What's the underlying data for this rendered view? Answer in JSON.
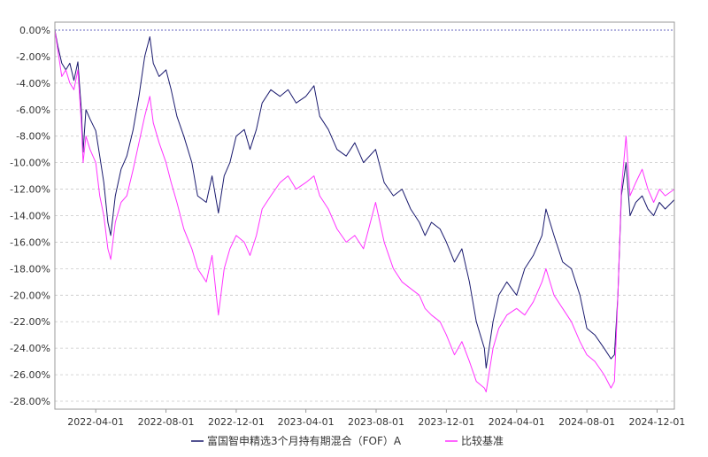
{
  "chart_data": {
    "type": "line",
    "title": "",
    "xlabel": "",
    "ylabel": "",
    "grid": true,
    "legend_position": "bottom",
    "ylim": [
      -28,
      0
    ],
    "xlim": [
      "2022-01-20",
      "2024-12-31"
    ],
    "y_tick_labels": [
      "0.00%",
      "-2.00%",
      "-4.00%",
      "-6.00%",
      "-8.00%",
      "-10.00%",
      "-12.00%",
      "-14.00%",
      "-16.00%",
      "-18.00%",
      "-20.00%",
      "-22.00%",
      "-24.00%",
      "-26.00%",
      "-28.00%"
    ],
    "y_ticks": [
      0,
      -2,
      -4,
      -6,
      -8,
      -10,
      -12,
      -14,
      -16,
      -18,
      -20,
      -22,
      -24,
      -26,
      -28
    ],
    "x_tick_labels": [
      "2022-04-01",
      "2022-08-01",
      "2022-12-01",
      "2023-04-01",
      "2023-08-01",
      "2023-12-01",
      "2024-04-01",
      "2024-08-01",
      "2024-12-01"
    ],
    "x_ticks": [
      "2022-04-01",
      "2022-08-01",
      "2022-12-01",
      "2023-04-01",
      "2023-08-01",
      "2023-12-01",
      "2024-04-01",
      "2024-08-01",
      "2024-12-01"
    ],
    "series": [
      {
        "name": "富国智申精选3个月持有期混合（FOF）A",
        "color": "#1a1a6e",
        "points": [
          [
            "2022-01-20",
            0.0
          ],
          [
            "2022-01-25",
            -1.2
          ],
          [
            "2022-02-01",
            -2.5
          ],
          [
            "2022-02-08",
            -3.0
          ],
          [
            "2022-02-15",
            -2.5
          ],
          [
            "2022-02-22",
            -3.8
          ],
          [
            "2022-03-01",
            -2.4
          ],
          [
            "2022-03-07",
            -6.0
          ],
          [
            "2022-03-10",
            -9.2
          ],
          [
            "2022-03-15",
            -6.0
          ],
          [
            "2022-03-22",
            -6.7
          ],
          [
            "2022-04-01",
            -7.6
          ],
          [
            "2022-04-08",
            -9.5
          ],
          [
            "2022-04-15",
            -11.5
          ],
          [
            "2022-04-22",
            -14.5
          ],
          [
            "2022-04-27",
            -15.5
          ],
          [
            "2022-05-05",
            -12.5
          ],
          [
            "2022-05-15",
            -10.5
          ],
          [
            "2022-05-25",
            -9.5
          ],
          [
            "2022-06-05",
            -7.5
          ],
          [
            "2022-06-15",
            -5.0
          ],
          [
            "2022-06-25",
            -2.0
          ],
          [
            "2022-07-04",
            -0.5
          ],
          [
            "2022-07-10",
            -2.5
          ],
          [
            "2022-07-20",
            -3.5
          ],
          [
            "2022-08-01",
            -3.0
          ],
          [
            "2022-08-10",
            -4.5
          ],
          [
            "2022-08-20",
            -6.5
          ],
          [
            "2022-09-01",
            -8.0
          ],
          [
            "2022-09-15",
            -10.0
          ],
          [
            "2022-09-25",
            -12.5
          ],
          [
            "2022-10-10",
            -13.0
          ],
          [
            "2022-10-20",
            -11.0
          ],
          [
            "2022-10-31",
            -13.8
          ],
          [
            "2022-11-10",
            -11.0
          ],
          [
            "2022-11-20",
            -10.0
          ],
          [
            "2022-12-01",
            -8.0
          ],
          [
            "2022-12-15",
            -7.5
          ],
          [
            "2022-12-25",
            -9.0
          ],
          [
            "2023-01-05",
            -7.5
          ],
          [
            "2023-01-15",
            -5.5
          ],
          [
            "2023-01-30",
            -4.5
          ],
          [
            "2023-02-15",
            -5.0
          ],
          [
            "2023-03-01",
            -4.5
          ],
          [
            "2023-03-15",
            -5.5
          ],
          [
            "2023-04-01",
            -5.0
          ],
          [
            "2023-04-15",
            -4.2
          ],
          [
            "2023-04-25",
            -6.5
          ],
          [
            "2023-05-10",
            -7.5
          ],
          [
            "2023-05-25",
            -9.0
          ],
          [
            "2023-06-10",
            -9.5
          ],
          [
            "2023-06-25",
            -8.5
          ],
          [
            "2023-07-10",
            -10.0
          ],
          [
            "2023-07-31",
            -9.0
          ],
          [
            "2023-08-15",
            -11.5
          ],
          [
            "2023-08-31",
            -12.5
          ],
          [
            "2023-09-15",
            -12.0
          ],
          [
            "2023-09-30",
            -13.5
          ],
          [
            "2023-10-15",
            -14.5
          ],
          [
            "2023-10-25",
            -15.5
          ],
          [
            "2023-11-05",
            -14.5
          ],
          [
            "2023-11-20",
            -15.0
          ],
          [
            "2023-12-01",
            -16.0
          ],
          [
            "2023-12-15",
            -17.5
          ],
          [
            "2023-12-28",
            -16.5
          ],
          [
            "2024-01-10",
            -19.0
          ],
          [
            "2024-01-22",
            -22.0
          ],
          [
            "2024-02-05",
            -24.0
          ],
          [
            "2024-02-08",
            -25.5
          ],
          [
            "2024-02-20",
            -22.0
          ],
          [
            "2024-03-01",
            -20.0
          ],
          [
            "2024-03-15",
            -19.0
          ],
          [
            "2024-04-01",
            -20.0
          ],
          [
            "2024-04-15",
            -18.0
          ],
          [
            "2024-04-30",
            -17.0
          ],
          [
            "2024-05-15",
            -15.5
          ],
          [
            "2024-05-22",
            -13.5
          ],
          [
            "2024-06-05",
            -15.5
          ],
          [
            "2024-06-20",
            -17.5
          ],
          [
            "2024-07-05",
            -18.0
          ],
          [
            "2024-07-20",
            -20.0
          ],
          [
            "2024-08-01",
            -22.5
          ],
          [
            "2024-08-15",
            -23.0
          ],
          [
            "2024-08-31",
            -24.0
          ],
          [
            "2024-09-12",
            -24.8
          ],
          [
            "2024-09-18",
            -24.5
          ],
          [
            "2024-09-24",
            -20.0
          ],
          [
            "2024-09-30",
            -12.5
          ],
          [
            "2024-10-08",
            -10.0
          ],
          [
            "2024-10-15",
            -14.0
          ],
          [
            "2024-10-25",
            -13.0
          ],
          [
            "2024-11-05",
            -12.5
          ],
          [
            "2024-11-15",
            -13.5
          ],
          [
            "2024-11-25",
            -14.0
          ],
          [
            "2024-12-05",
            -13.0
          ],
          [
            "2024-12-15",
            -13.5
          ],
          [
            "2024-12-31",
            -12.8
          ]
        ]
      },
      {
        "name": "比较基准",
        "color": "#ff33ff",
        "points": [
          [
            "2022-01-20",
            0.0
          ],
          [
            "2022-01-25",
            -1.5
          ],
          [
            "2022-02-01",
            -3.5
          ],
          [
            "2022-02-08",
            -3.0
          ],
          [
            "2022-02-15",
            -4.0
          ],
          [
            "2022-02-22",
            -4.5
          ],
          [
            "2022-03-01",
            -3.0
          ],
          [
            "2022-03-07",
            -7.0
          ],
          [
            "2022-03-10",
            -10.0
          ],
          [
            "2022-03-15",
            -8.0
          ],
          [
            "2022-03-22",
            -9.0
          ],
          [
            "2022-04-01",
            -10.0
          ],
          [
            "2022-04-08",
            -12.5
          ],
          [
            "2022-04-15",
            -14.0
          ],
          [
            "2022-04-22",
            -16.5
          ],
          [
            "2022-04-27",
            -17.3
          ],
          [
            "2022-05-05",
            -14.5
          ],
          [
            "2022-05-15",
            -13.0
          ],
          [
            "2022-05-25",
            -12.5
          ],
          [
            "2022-06-05",
            -10.5
          ],
          [
            "2022-06-15",
            -8.5
          ],
          [
            "2022-06-25",
            -6.5
          ],
          [
            "2022-07-04",
            -5.0
          ],
          [
            "2022-07-10",
            -7.0
          ],
          [
            "2022-07-20",
            -8.5
          ],
          [
            "2022-08-01",
            -10.0
          ],
          [
            "2022-08-10",
            -11.5
          ],
          [
            "2022-08-20",
            -13.0
          ],
          [
            "2022-09-01",
            -15.0
          ],
          [
            "2022-09-15",
            -16.5
          ],
          [
            "2022-09-25",
            -18.0
          ],
          [
            "2022-10-10",
            -19.0
          ],
          [
            "2022-10-20",
            -17.0
          ],
          [
            "2022-10-31",
            -21.5
          ],
          [
            "2022-11-10",
            -18.0
          ],
          [
            "2022-11-20",
            -16.5
          ],
          [
            "2022-12-01",
            -15.5
          ],
          [
            "2022-12-15",
            -16.0
          ],
          [
            "2022-12-25",
            -17.0
          ],
          [
            "2023-01-05",
            -15.5
          ],
          [
            "2023-01-15",
            -13.5
          ],
          [
            "2023-01-30",
            -12.5
          ],
          [
            "2023-02-15",
            -11.5
          ],
          [
            "2023-03-01",
            -11.0
          ],
          [
            "2023-03-15",
            -12.0
          ],
          [
            "2023-04-01",
            -11.5
          ],
          [
            "2023-04-15",
            -11.0
          ],
          [
            "2023-04-25",
            -12.5
          ],
          [
            "2023-05-10",
            -13.5
          ],
          [
            "2023-05-25",
            -15.0
          ],
          [
            "2023-06-10",
            -16.0
          ],
          [
            "2023-06-25",
            -15.5
          ],
          [
            "2023-07-10",
            -16.5
          ],
          [
            "2023-07-31",
            -13.0
          ],
          [
            "2023-08-15",
            -16.0
          ],
          [
            "2023-08-31",
            -18.0
          ],
          [
            "2023-09-15",
            -19.0
          ],
          [
            "2023-09-30",
            -19.5
          ],
          [
            "2023-10-15",
            -20.0
          ],
          [
            "2023-10-25",
            -21.0
          ],
          [
            "2023-11-05",
            -21.5
          ],
          [
            "2023-11-20",
            -22.0
          ],
          [
            "2023-12-01",
            -23.0
          ],
          [
            "2023-12-15",
            -24.5
          ],
          [
            "2023-12-28",
            -23.5
          ],
          [
            "2024-01-10",
            -25.0
          ],
          [
            "2024-01-22",
            -26.5
          ],
          [
            "2024-02-05",
            -27.0
          ],
          [
            "2024-02-08",
            -27.3
          ],
          [
            "2024-02-20",
            -24.0
          ],
          [
            "2024-03-01",
            -22.5
          ],
          [
            "2024-03-15",
            -21.5
          ],
          [
            "2024-04-01",
            -21.0
          ],
          [
            "2024-04-15",
            -21.5
          ],
          [
            "2024-04-30",
            -20.5
          ],
          [
            "2024-05-15",
            -19.0
          ],
          [
            "2024-05-22",
            -18.0
          ],
          [
            "2024-06-05",
            -20.0
          ],
          [
            "2024-06-20",
            -21.0
          ],
          [
            "2024-07-05",
            -22.0
          ],
          [
            "2024-07-20",
            -23.5
          ],
          [
            "2024-08-01",
            -24.5
          ],
          [
            "2024-08-15",
            -25.0
          ],
          [
            "2024-08-31",
            -26.0
          ],
          [
            "2024-09-12",
            -27.0
          ],
          [
            "2024-09-18",
            -26.5
          ],
          [
            "2024-09-24",
            -20.0
          ],
          [
            "2024-09-30",
            -12.0
          ],
          [
            "2024-10-08",
            -8.0
          ],
          [
            "2024-10-15",
            -12.5
          ],
          [
            "2024-10-25",
            -11.5
          ],
          [
            "2024-11-05",
            -10.5
          ],
          [
            "2024-11-15",
            -12.0
          ],
          [
            "2024-11-25",
            -13.0
          ],
          [
            "2024-12-05",
            -12.0
          ],
          [
            "2024-12-15",
            -12.5
          ],
          [
            "2024-12-31",
            -12.0
          ]
        ]
      }
    ]
  },
  "colors": {
    "axis": "#999999",
    "grid": "#c8c8c8",
    "zero_line": "#3333aa"
  }
}
